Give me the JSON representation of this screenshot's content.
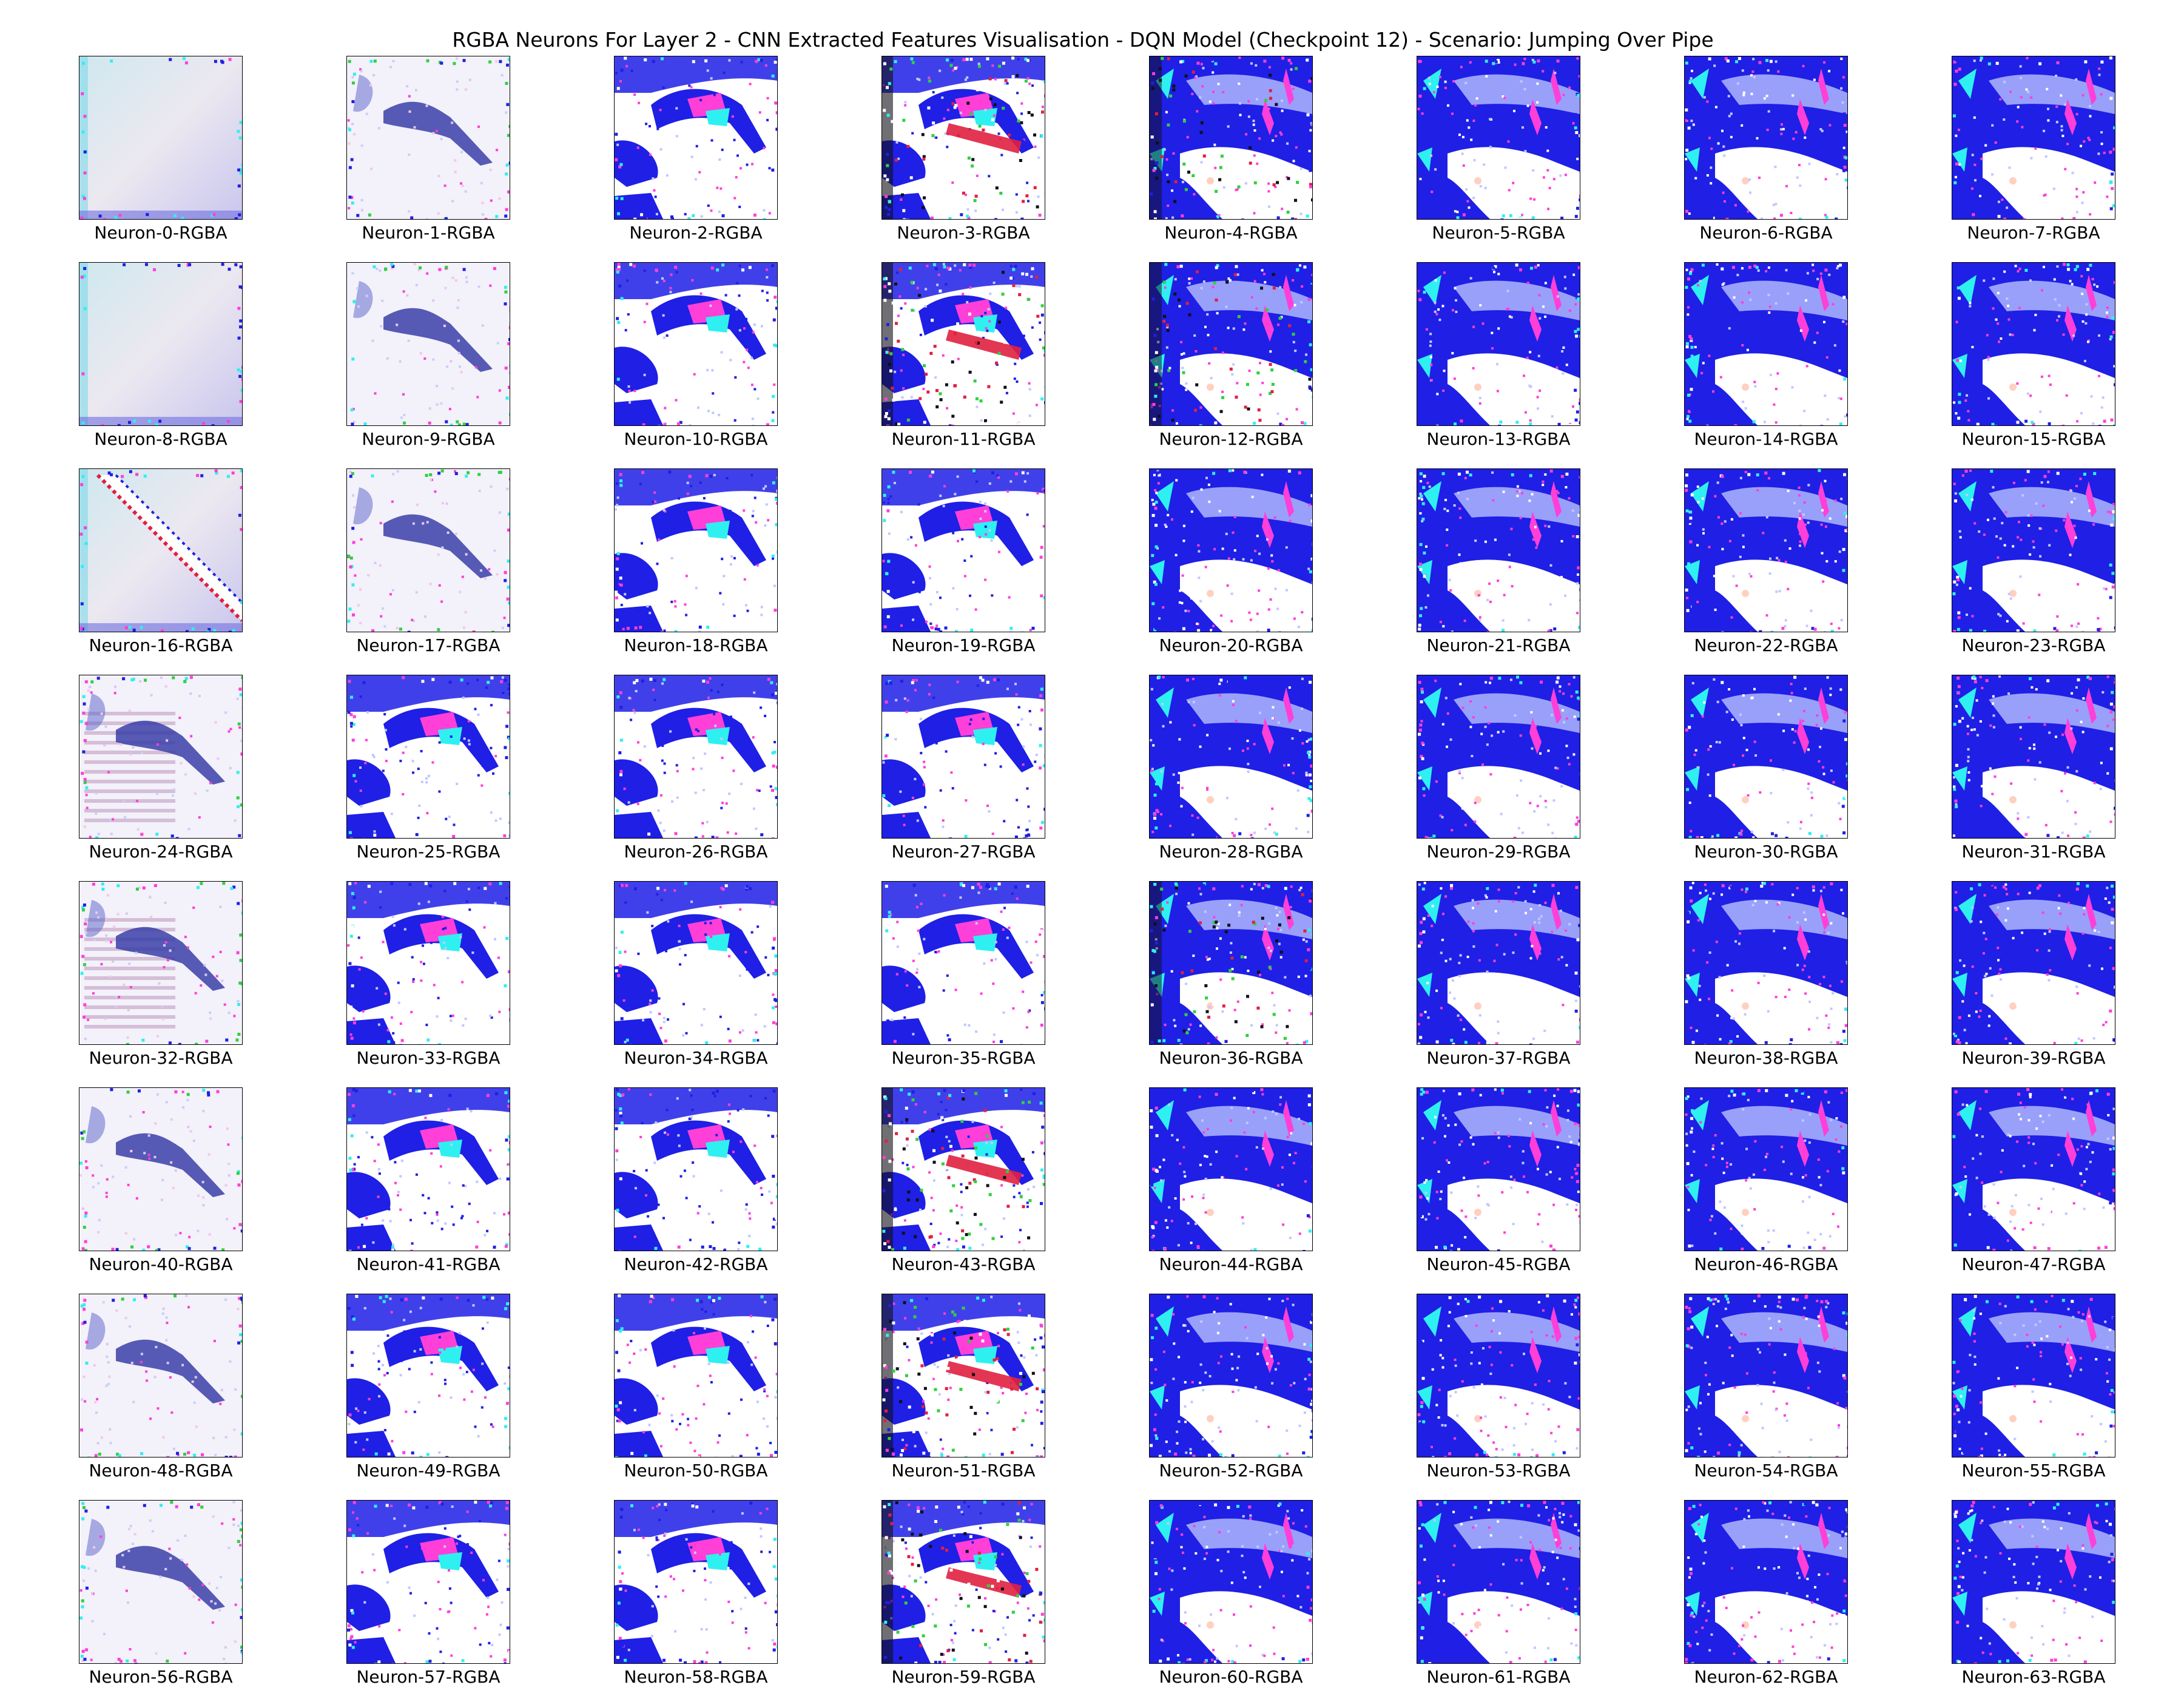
{
  "figure": {
    "title": "RGBA Neurons For Layer 2 - CNN Extracted Features Visualisation - DQN Model (Checkpoint 12) - Scenario: Jumping Over Pipe"
  },
  "palette": {
    "blue": "#1f1fe6",
    "white": "#ffffff",
    "magenta": "#ff3fd8",
    "cyan": "#2ff0f0",
    "pale": "#ece8f0",
    "red": "#e02040",
    "black": "#101018",
    "green": "#30d040"
  },
  "neurons": [
    {
      "label": "Neuron-0-RGBA",
      "style": "pale"
    },
    {
      "label": "Neuron-1-RGBA",
      "style": "faint"
    },
    {
      "label": "Neuron-2-RGBA",
      "style": "mid"
    },
    {
      "label": "Neuron-3-RGBA",
      "style": "noisy"
    },
    {
      "label": "Neuron-4-RGBA",
      "style": "noisy-blue"
    },
    {
      "label": "Neuron-5-RGBA",
      "style": "dense"
    },
    {
      "label": "Neuron-6-RGBA",
      "style": "dense"
    },
    {
      "label": "Neuron-7-RGBA",
      "style": "dense"
    },
    {
      "label": "Neuron-8-RGBA",
      "style": "pale"
    },
    {
      "label": "Neuron-9-RGBA",
      "style": "faint"
    },
    {
      "label": "Neuron-10-RGBA",
      "style": "mid"
    },
    {
      "label": "Neuron-11-RGBA",
      "style": "noisy"
    },
    {
      "label": "Neuron-12-RGBA",
      "style": "noisy-blue"
    },
    {
      "label": "Neuron-13-RGBA",
      "style": "dense"
    },
    {
      "label": "Neuron-14-RGBA",
      "style": "dense"
    },
    {
      "label": "Neuron-15-RGBA",
      "style": "dense"
    },
    {
      "label": "Neuron-16-RGBA",
      "style": "pale-diagonal"
    },
    {
      "label": "Neuron-17-RGBA",
      "style": "faint"
    },
    {
      "label": "Neuron-18-RGBA",
      "style": "mid"
    },
    {
      "label": "Neuron-19-RGBA",
      "style": "mid"
    },
    {
      "label": "Neuron-20-RGBA",
      "style": "dense"
    },
    {
      "label": "Neuron-21-RGBA",
      "style": "dense"
    },
    {
      "label": "Neuron-22-RGBA",
      "style": "dense"
    },
    {
      "label": "Neuron-23-RGBA",
      "style": "dense"
    },
    {
      "label": "Neuron-24-RGBA",
      "style": "faint-stripes"
    },
    {
      "label": "Neuron-25-RGBA",
      "style": "mid"
    },
    {
      "label": "Neuron-26-RGBA",
      "style": "mid"
    },
    {
      "label": "Neuron-27-RGBA",
      "style": "mid"
    },
    {
      "label": "Neuron-28-RGBA",
      "style": "dense"
    },
    {
      "label": "Neuron-29-RGBA",
      "style": "dense"
    },
    {
      "label": "Neuron-30-RGBA",
      "style": "dense"
    },
    {
      "label": "Neuron-31-RGBA",
      "style": "dense"
    },
    {
      "label": "Neuron-32-RGBA",
      "style": "faint-stripes"
    },
    {
      "label": "Neuron-33-RGBA",
      "style": "mid"
    },
    {
      "label": "Neuron-34-RGBA",
      "style": "mid"
    },
    {
      "label": "Neuron-35-RGBA",
      "style": "mid"
    },
    {
      "label": "Neuron-36-RGBA",
      "style": "noisy-blue"
    },
    {
      "label": "Neuron-37-RGBA",
      "style": "dense"
    },
    {
      "label": "Neuron-38-RGBA",
      "style": "dense"
    },
    {
      "label": "Neuron-39-RGBA",
      "style": "dense"
    },
    {
      "label": "Neuron-40-RGBA",
      "style": "faint"
    },
    {
      "label": "Neuron-41-RGBA",
      "style": "mid"
    },
    {
      "label": "Neuron-42-RGBA",
      "style": "mid"
    },
    {
      "label": "Neuron-43-RGBA",
      "style": "noisy"
    },
    {
      "label": "Neuron-44-RGBA",
      "style": "dense"
    },
    {
      "label": "Neuron-45-RGBA",
      "style": "dense"
    },
    {
      "label": "Neuron-46-RGBA",
      "style": "dense"
    },
    {
      "label": "Neuron-47-RGBA",
      "style": "dense"
    },
    {
      "label": "Neuron-48-RGBA",
      "style": "faint"
    },
    {
      "label": "Neuron-49-RGBA",
      "style": "mid"
    },
    {
      "label": "Neuron-50-RGBA",
      "style": "mid"
    },
    {
      "label": "Neuron-51-RGBA",
      "style": "noisy"
    },
    {
      "label": "Neuron-52-RGBA",
      "style": "dense"
    },
    {
      "label": "Neuron-53-RGBA",
      "style": "dense"
    },
    {
      "label": "Neuron-54-RGBA",
      "style": "dense"
    },
    {
      "label": "Neuron-55-RGBA",
      "style": "dense"
    },
    {
      "label": "Neuron-56-RGBA",
      "style": "faint"
    },
    {
      "label": "Neuron-57-RGBA",
      "style": "mid"
    },
    {
      "label": "Neuron-58-RGBA",
      "style": "mid"
    },
    {
      "label": "Neuron-59-RGBA",
      "style": "noisy"
    },
    {
      "label": "Neuron-60-RGBA",
      "style": "dense"
    },
    {
      "label": "Neuron-61-RGBA",
      "style": "dense"
    },
    {
      "label": "Neuron-62-RGBA",
      "style": "dense"
    },
    {
      "label": "Neuron-63-RGBA",
      "style": "dense"
    }
  ]
}
